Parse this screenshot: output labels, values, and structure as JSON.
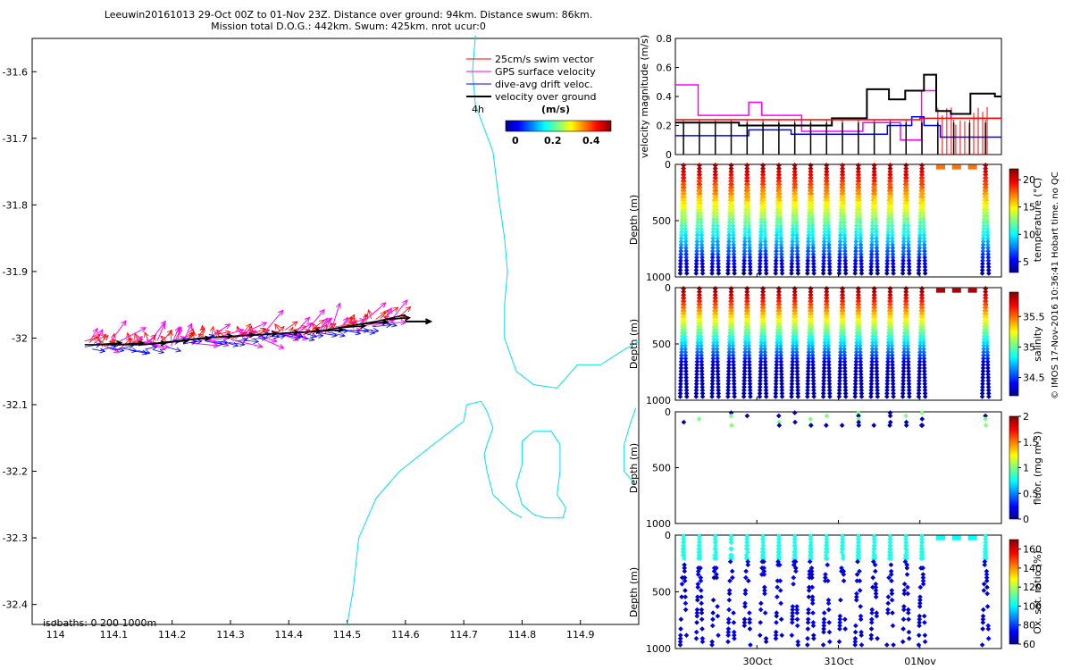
{
  "header": {
    "line1": "Leeuwin20161013 29-Oct 00Z to 01-Nov 23Z. Distance over ground: 94km. Distance swum: 86km.",
    "line2": "Mission total D.O.G.: 442km. Swum: 425km. nrot ucur:0"
  },
  "side_note": "© IMOS 17-Nov-2016 10:36:41 Hobart time. no QC",
  "colors": {
    "swim": "#ff0000",
    "gps": "#ff00ff",
    "dive_avg": "#0000ff",
    "ground": "#000000",
    "isobath": "#00e0f0"
  },
  "chart_data": [
    {
      "type": "scatter",
      "name": "map",
      "xlim": [
        113.96,
        115.0
      ],
      "ylim": [
        -32.43,
        -31.55
      ],
      "x_ticks": [
        "114",
        "114.1",
        "114.2",
        "114.3",
        "114.4",
        "114.5",
        "114.6",
        "114.7",
        "114.8",
        "114.9"
      ],
      "y_ticks": [
        "-31.6",
        "-31.7",
        "-31.8",
        "-31.9",
        "-32",
        "-32.1",
        "-32.2",
        "-32.3",
        "-32.4"
      ],
      "legend": [
        {
          "label": "25cm/s swim vector",
          "color": "#ff0000"
        },
        {
          "label": "GPS surface velocity",
          "color": "#ff00ff"
        },
        {
          "label": "dive-avg drift veloc.",
          "color": "#0000ff"
        },
        {
          "label": "velocity over ground",
          "color": "#000000"
        }
      ],
      "legend_note": "4h",
      "colorbar": {
        "label": "(m/s)",
        "ticks": [
          "0",
          "0.2",
          "0.4"
        ],
        "range": [
          0,
          0.5
        ]
      },
      "isobath_note": "isobaths: 0   200  1000m",
      "track": [
        [
          114.05,
          -32.01
        ],
        [
          114.15,
          -32.01
        ],
        [
          114.25,
          -32.0
        ],
        [
          114.35,
          -31.995
        ],
        [
          114.45,
          -31.99
        ],
        [
          114.55,
          -31.975
        ],
        [
          114.6,
          -31.965
        ]
      ],
      "isobath_main": [
        [
          114.72,
          -31.545
        ],
        [
          114.715,
          -31.6
        ],
        [
          114.72,
          -31.65
        ],
        [
          114.75,
          -31.72
        ],
        [
          114.76,
          -31.79
        ],
        [
          114.77,
          -31.85
        ],
        [
          114.775,
          -31.9
        ],
        [
          114.77,
          -31.95
        ],
        [
          114.77,
          -32.0
        ],
        [
          114.79,
          -32.05
        ],
        [
          114.82,
          -32.07
        ],
        [
          114.86,
          -32.075
        ],
        [
          114.895,
          -32.04
        ],
        [
          114.935,
          -32.04
        ],
        [
          114.97,
          -32.02
        ],
        [
          115.0,
          -32.005
        ]
      ],
      "isobath_coast": [
        [
          114.5,
          -32.43
        ],
        [
          114.51,
          -32.38
        ],
        [
          114.52,
          -32.3
        ],
        [
          114.55,
          -32.24
        ],
        [
          114.59,
          -32.2
        ],
        [
          114.64,
          -32.165
        ],
        [
          114.67,
          -32.145
        ],
        [
          114.7,
          -32.125
        ],
        [
          114.705,
          -32.1
        ],
        [
          114.73,
          -32.095
        ],
        [
          114.74,
          -32.11
        ],
        [
          114.75,
          -32.135
        ],
        [
          114.74,
          -32.16
        ],
        [
          114.735,
          -32.175
        ],
        [
          114.74,
          -32.2
        ],
        [
          114.75,
          -32.235
        ],
        [
          114.78,
          -32.26
        ],
        [
          114.8,
          -32.27
        ]
      ],
      "isobath_island": [
        [
          114.8,
          -32.155
        ],
        [
          114.82,
          -32.14
        ],
        [
          114.85,
          -32.14
        ],
        [
          114.865,
          -32.16
        ],
        [
          114.865,
          -32.2
        ],
        [
          114.86,
          -32.235
        ],
        [
          114.875,
          -32.255
        ],
        [
          114.87,
          -32.27
        ],
        [
          114.84,
          -32.27
        ],
        [
          114.82,
          -32.265
        ],
        [
          114.8,
          -32.25
        ],
        [
          114.79,
          -32.22
        ],
        [
          114.8,
          -32.19
        ],
        [
          114.8,
          -32.155
        ]
      ],
      "isobath_right": [
        [
          114.995,
          -32.105
        ],
        [
          114.985,
          -32.13
        ],
        [
          114.975,
          -32.16
        ],
        [
          114.975,
          -32.2
        ],
        [
          114.995,
          -32.22
        ]
      ]
    },
    {
      "type": "line",
      "name": "velocity",
      "ylabel": "velocity magnitude (m/s)",
      "ylim": [
        0,
        0.8
      ],
      "y_ticks": [
        "0",
        "0.2",
        "0.4",
        "0.6",
        "0.8"
      ],
      "xlim": [
        0,
        4
      ],
      "series": [
        {
          "color": "#ff00ff",
          "x": [
            0,
            0.28,
            0.28,
            0.9,
            0.9,
            1.06,
            1.06,
            1.55,
            1.55,
            2.3,
            2.3,
            2.76,
            2.76,
            3.02,
            3.02,
            3.2,
            3.2,
            3.38,
            3.38,
            4
          ],
          "y": [
            0.48,
            0.48,
            0.27,
            0.27,
            0.36,
            0.36,
            0.27,
            0.27,
            0.16,
            0.16,
            0.22,
            0.22,
            0.1,
            0.1,
            0.44,
            0.44,
            0.3,
            0.3,
            0.25,
            0.25
          ]
        },
        {
          "color": "#0000ff",
          "x": [
            0,
            0.9,
            0.9,
            1.42,
            1.42,
            2.6,
            2.6,
            2.9,
            2.9,
            3.05,
            3.05,
            3.25,
            3.25,
            4
          ],
          "y": [
            0.13,
            0.13,
            0.17,
            0.17,
            0.14,
            0.14,
            0.2,
            0.2,
            0.26,
            0.26,
            0.2,
            0.2,
            0.12,
            0.12
          ]
        },
        {
          "color": "#000000",
          "x": [
            0,
            0.78,
            0.78,
            1.92,
            1.92,
            2.35,
            2.35,
            2.62,
            2.62,
            2.82,
            2.82,
            3.05,
            3.05,
            3.2,
            3.2,
            3.38,
            3.38,
            3.62,
            3.62,
            3.92,
            3.92,
            4
          ],
          "y": [
            0.22,
            0.22,
            0.2,
            0.2,
            0.25,
            0.25,
            0.45,
            0.45,
            0.38,
            0.38,
            0.44,
            0.44,
            0.55,
            0.55,
            0.3,
            0.3,
            0.28,
            0.28,
            0.42,
            0.42,
            0.4,
            0.4
          ]
        },
        {
          "color": "#ff0000",
          "x": [
            0,
            3.0,
            3.0,
            4
          ],
          "y": [
            0.24,
            0.24,
            0.25,
            0.25
          ]
        }
      ]
    },
    {
      "type": "scatter",
      "name": "temperature",
      "ylabel": "Depth (m)",
      "ylim": [
        1000,
        0
      ],
      "y_ticks": [
        "0",
        "500",
        "1000"
      ],
      "colorbar": {
        "label": "temperature (°C)",
        "ticks": [
          "5",
          "10",
          "15",
          "20"
        ],
        "range": [
          3,
          22
        ]
      }
    },
    {
      "type": "scatter",
      "name": "salinity",
      "ylabel": "Depth (m)",
      "ylim": [
        1000,
        0
      ],
      "y_ticks": [
        "0",
        "500",
        "1000"
      ],
      "colorbar": {
        "label": "salinity",
        "ticks": [
          "34.5",
          "35",
          "35.5"
        ],
        "range": [
          34.2,
          35.9
        ]
      }
    },
    {
      "type": "scatter",
      "name": "fluorescence",
      "ylabel": "Depth (m)",
      "ylim": [
        1000,
        0
      ],
      "y_ticks": [
        "0",
        "500",
        "1000"
      ],
      "colorbar": {
        "label": "fluor. (mg m-3)",
        "ticks": [
          "0",
          "0.5",
          "1",
          "1.5",
          "2"
        ],
        "range": [
          0,
          2
        ]
      }
    },
    {
      "type": "scatter",
      "name": "oxygen",
      "ylabel": "Depth (m)",
      "ylim": [
        1000,
        0
      ],
      "y_ticks": [
        "0",
        "500",
        "1000"
      ],
      "x_ticks": [
        "30Oct",
        "31Oct",
        "01Nov"
      ],
      "colorbar": {
        "label": "Ox. sat. ratio (%)",
        "ticks": [
          "60",
          "80",
          "100",
          "120",
          "140",
          "160"
        ],
        "range": [
          60,
          170
        ]
      }
    }
  ]
}
